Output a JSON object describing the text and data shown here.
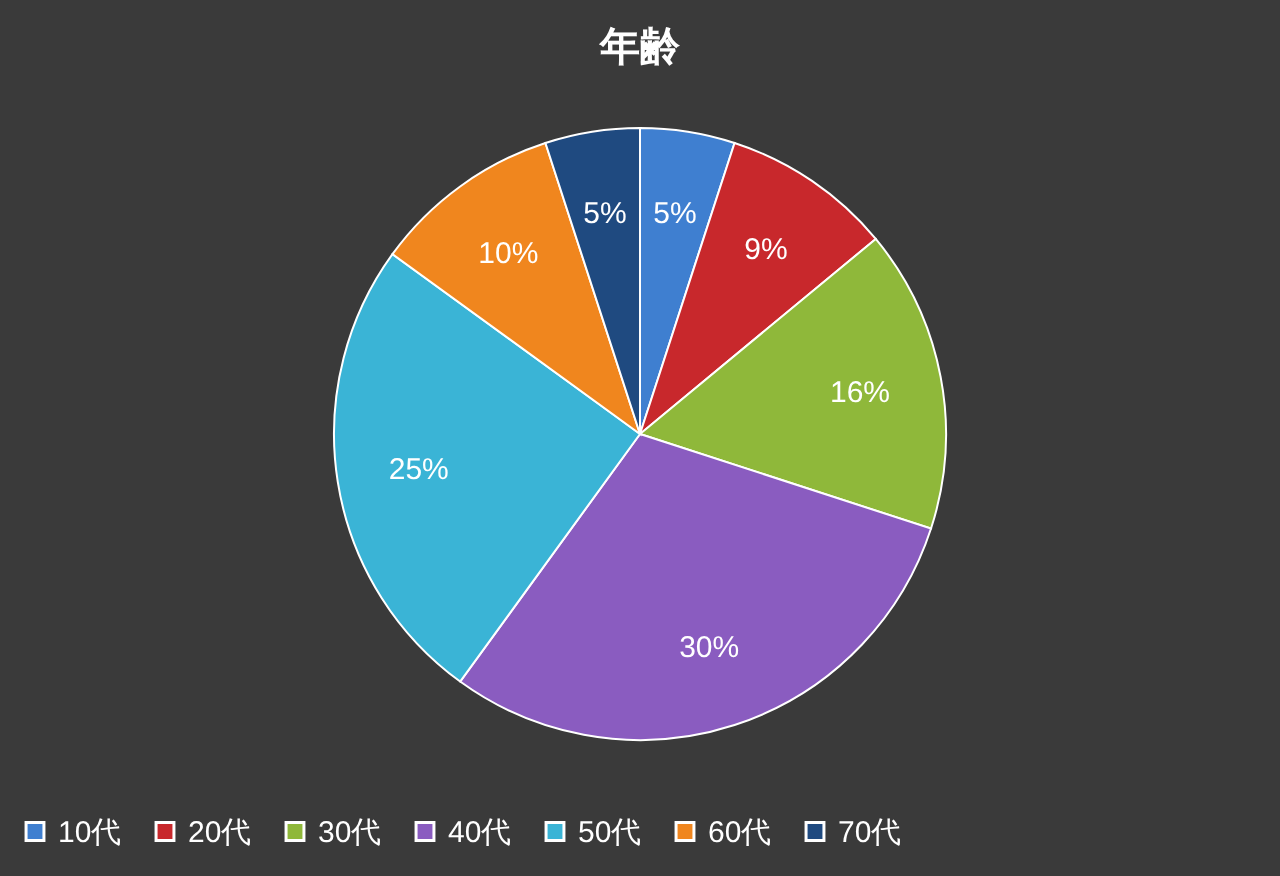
{
  "chart_data": {
    "type": "pie",
    "title": "年齢",
    "categories": [
      "10代",
      "20代",
      "30代",
      "40代",
      "50代",
      "60代",
      "70代"
    ],
    "values": [
      5,
      9,
      16,
      30,
      25,
      10,
      5
    ],
    "value_labels": [
      "5%",
      "9%",
      "16%",
      "30%",
      "25%",
      "10%",
      "5%"
    ],
    "colors": [
      "#3f7fd0",
      "#c8282c",
      "#8fb83a",
      "#8a5cc0",
      "#3ab4d6",
      "#f0861e",
      "#1f4a80"
    ],
    "legend": "bottom"
  }
}
